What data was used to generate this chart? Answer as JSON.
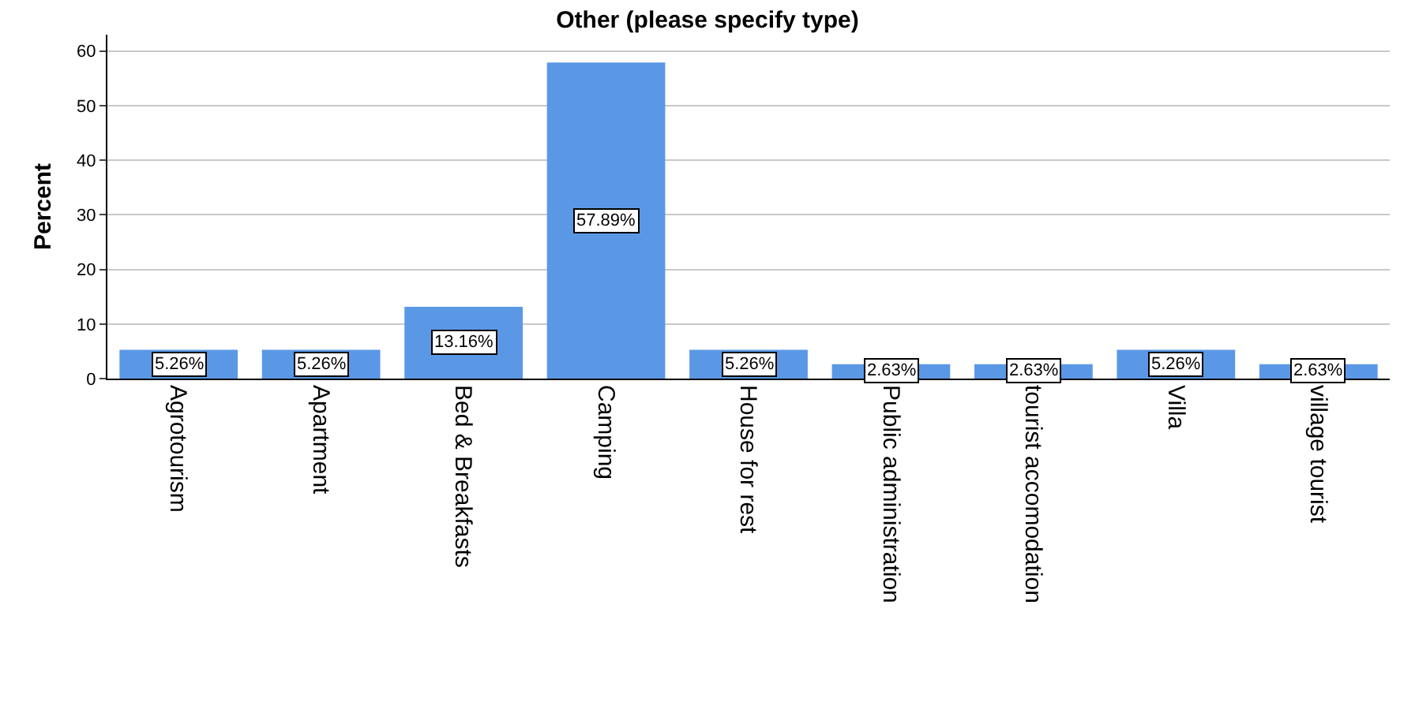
{
  "chart_data": {
    "type": "bar",
    "title": "Other (please specify type)",
    "ylabel": "Percent",
    "categories": [
      "Agrotourism",
      "Apartment",
      "Bed & Breakfasts",
      "Camping",
      "House for rest",
      "Public administration",
      "tourist accomodation",
      "Villa",
      "village tourist"
    ],
    "values": [
      5.26,
      5.26,
      13.16,
      57.89,
      5.26,
      2.63,
      2.63,
      5.26,
      2.63
    ],
    "value_labels": [
      "5.26%",
      "5.26%",
      "13.16%",
      "57.89%",
      "5.26%",
      "2.63%",
      "2.63%",
      "5.26%",
      "2.63%"
    ],
    "color": "#5a98e6",
    "ylim": [
      0,
      63
    ],
    "yticks": [
      0,
      10,
      20,
      30,
      40,
      50,
      60
    ],
    "grid": "y"
  }
}
